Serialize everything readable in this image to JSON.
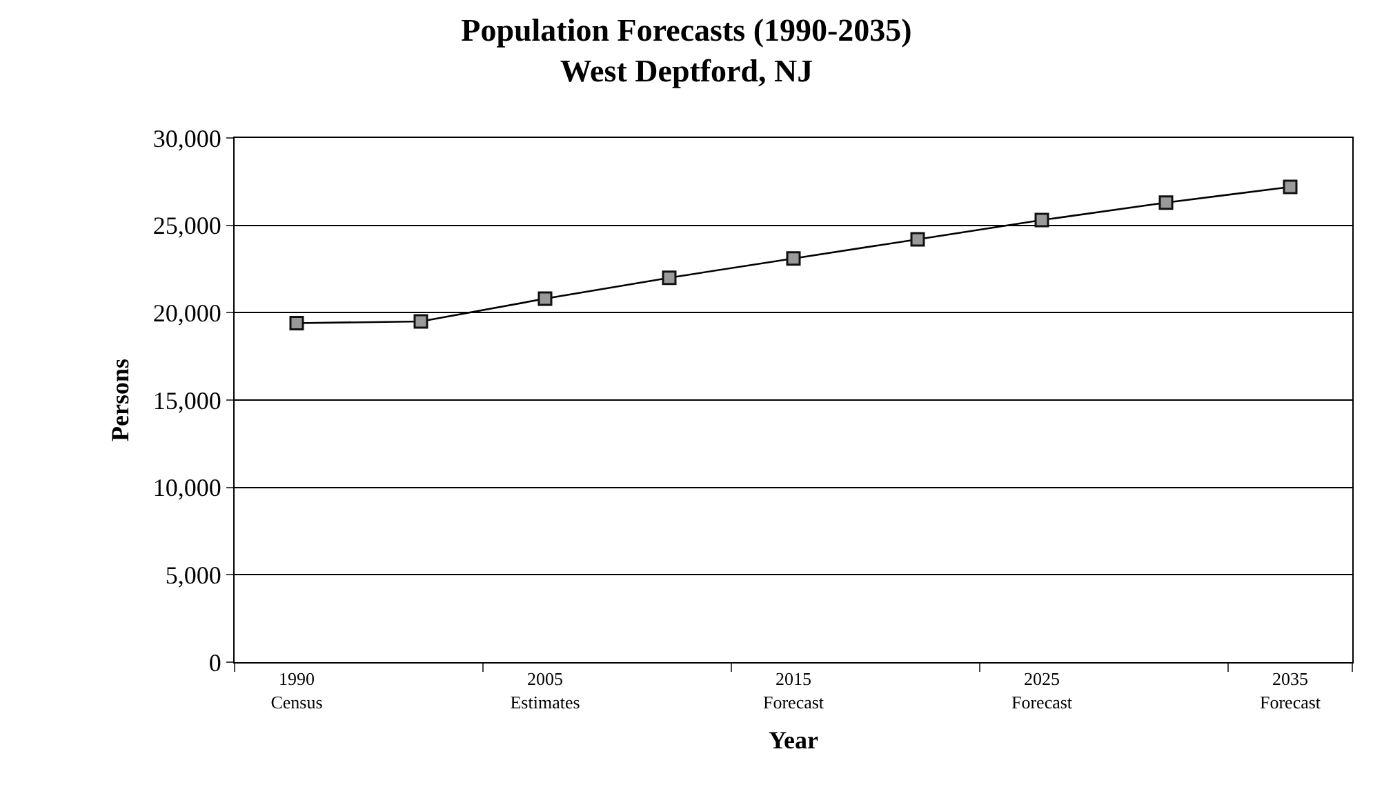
{
  "chart_data": {
    "type": "line",
    "title": "Population Forecasts (1990-2035)",
    "subtitle": "West Deptford, NJ",
    "xlabel": "Year",
    "ylabel": "Persons",
    "categories": [
      "1990\nCensus",
      null,
      "2005\nEstimates",
      null,
      "2015\nForecast",
      null,
      "2025\nForecast",
      null,
      "2035\nForecast"
    ],
    "series": [
      {
        "color": "#000000",
        "values": [
          19400,
          19500,
          20800,
          22000,
          23100,
          24200,
          25300,
          26300,
          27200
        ]
      }
    ],
    "ylim": [
      0,
      30000
    ],
    "yticks": [
      {
        "value": 0,
        "label": "0"
      },
      {
        "value": 5000,
        "label": "5,000"
      },
      {
        "value": 10000,
        "label": "10,000"
      },
      {
        "value": 15000,
        "label": "15,000"
      },
      {
        "value": 20000,
        "label": "20,000"
      },
      {
        "value": 25000,
        "label": "25,000"
      },
      {
        "value": 30000,
        "label": "30,000"
      }
    ],
    "grid": "y",
    "marker": "square",
    "line_style": "solid"
  }
}
